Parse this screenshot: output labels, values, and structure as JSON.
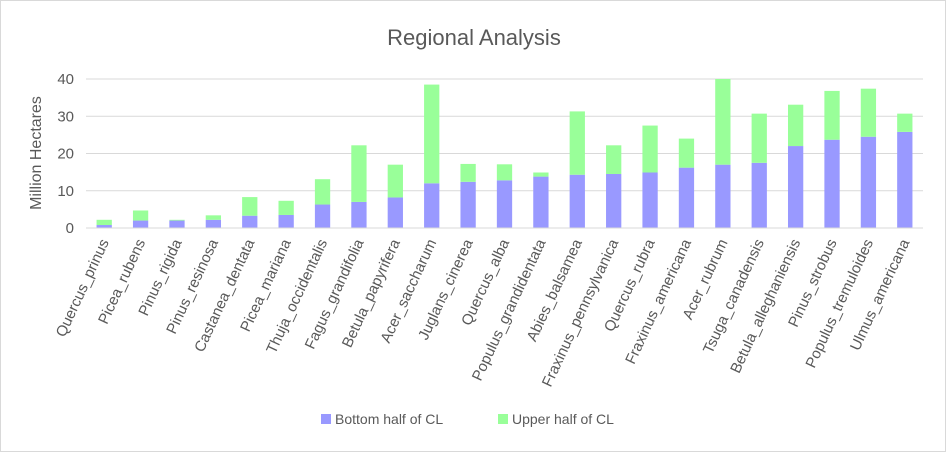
{
  "chart_data": {
    "type": "bar",
    "stacked": true,
    "title": "Regional Analysis",
    "xlabel": "",
    "ylabel": "Million Hectares",
    "ylim": [
      0,
      40
    ],
    "yticks": [
      0,
      10,
      20,
      30,
      40
    ],
    "grid": true,
    "legend_position": "bottom",
    "categories": [
      "Quercus_prinus",
      "Picea_rubens",
      "Pinus_rigida",
      "Pinus_resinosa",
      "Castanea_dentata",
      "Picea_mariana",
      "Thuja_occidentalis",
      "Fagus_grandifolia",
      "Betula_papyrifera",
      "Acer_saccharum",
      "Juglans_cinerea",
      "Quercus_alba",
      "Populus_grandidentata",
      "Abies_balsamea",
      "Fraxinus_pennsylvanica",
      "Quercus_rubra",
      "Fraxinus_americana",
      "Acer_rubrum",
      "Tsuga_canadensis",
      "Betula_alleghaniensis",
      "Pinus_strobus",
      "Populus_tremuloides",
      "Ulmus_americana"
    ],
    "series": [
      {
        "name": "Bottom half of CL",
        "color": "#9999ff",
        "values": [
          0.8,
          2.0,
          2.0,
          2.2,
          3.3,
          3.5,
          6.3,
          7.0,
          8.2,
          12.0,
          12.4,
          12.8,
          13.8,
          14.3,
          14.5,
          14.9,
          16.2,
          17.0,
          17.5,
          22.0,
          23.7,
          24.5,
          25.8
        ]
      },
      {
        "name": "Upper half of CL",
        "color": "#99ff99",
        "values": [
          1.4,
          2.7,
          0.2,
          1.2,
          5.0,
          3.8,
          6.8,
          15.2,
          8.8,
          26.5,
          4.8,
          4.3,
          1.1,
          17.0,
          7.7,
          12.6,
          7.8,
          23.0,
          13.2,
          11.1,
          13.1,
          12.9,
          4.9
        ]
      }
    ]
  }
}
